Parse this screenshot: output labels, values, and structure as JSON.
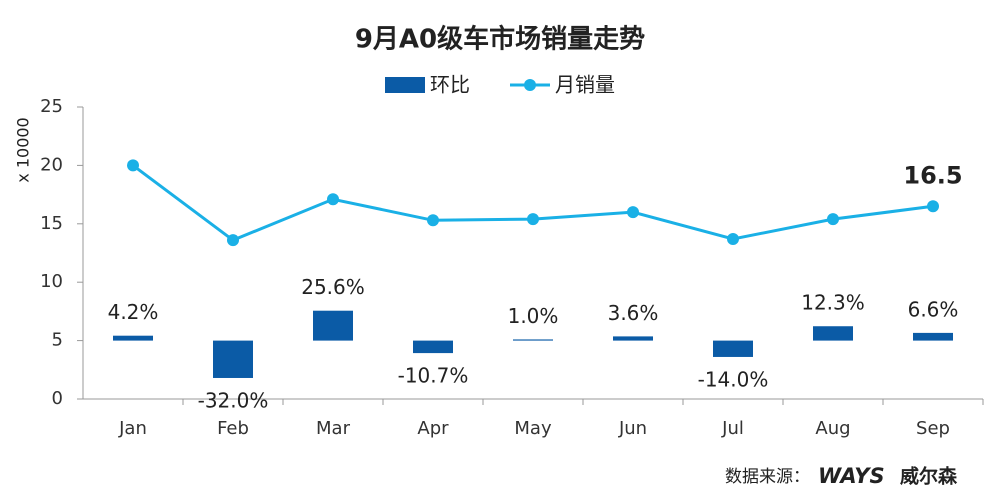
{
  "chart_data": {
    "type": "bar-line",
    "title": "9月A0级车市场销量走势",
    "y_label": "x 10000",
    "categories": [
      "Jan",
      "Feb",
      "Mar",
      "Apr",
      "May",
      "Jun",
      "Jul",
      "Aug",
      "Sep"
    ],
    "series": [
      {
        "name": "环比",
        "type": "bar",
        "axis": "y2",
        "color": "#0b5ba6",
        "values": [
          4.2,
          -32.0,
          25.6,
          -10.7,
          1.0,
          3.6,
          -14.0,
          12.3,
          6.6
        ],
        "value_labels": [
          "4.2%",
          "-32.0%",
          "25.6%",
          "-10.7%",
          "1.0%",
          "3.6%",
          "-14.0%",
          "12.3%",
          "6.6%"
        ]
      },
      {
        "name": "月销量",
        "type": "line",
        "color": "#1ab0e6",
        "values": [
          20.0,
          13.6,
          17.1,
          15.3,
          15.4,
          16.0,
          13.7,
          15.4,
          16.5
        ],
        "value_labels": [
          null,
          null,
          null,
          null,
          null,
          null,
          null,
          null,
          "16.5"
        ]
      }
    ],
    "ylim": [
      0,
      25
    ],
    "yticks": [
      0,
      5,
      10,
      15,
      20,
      25
    ],
    "y2lim": [
      -50,
      200
    ],
    "grid": false,
    "legend": "top",
    "source": "数据来源：",
    "brand": "WAYS",
    "brand_cn": "威尔森"
  }
}
